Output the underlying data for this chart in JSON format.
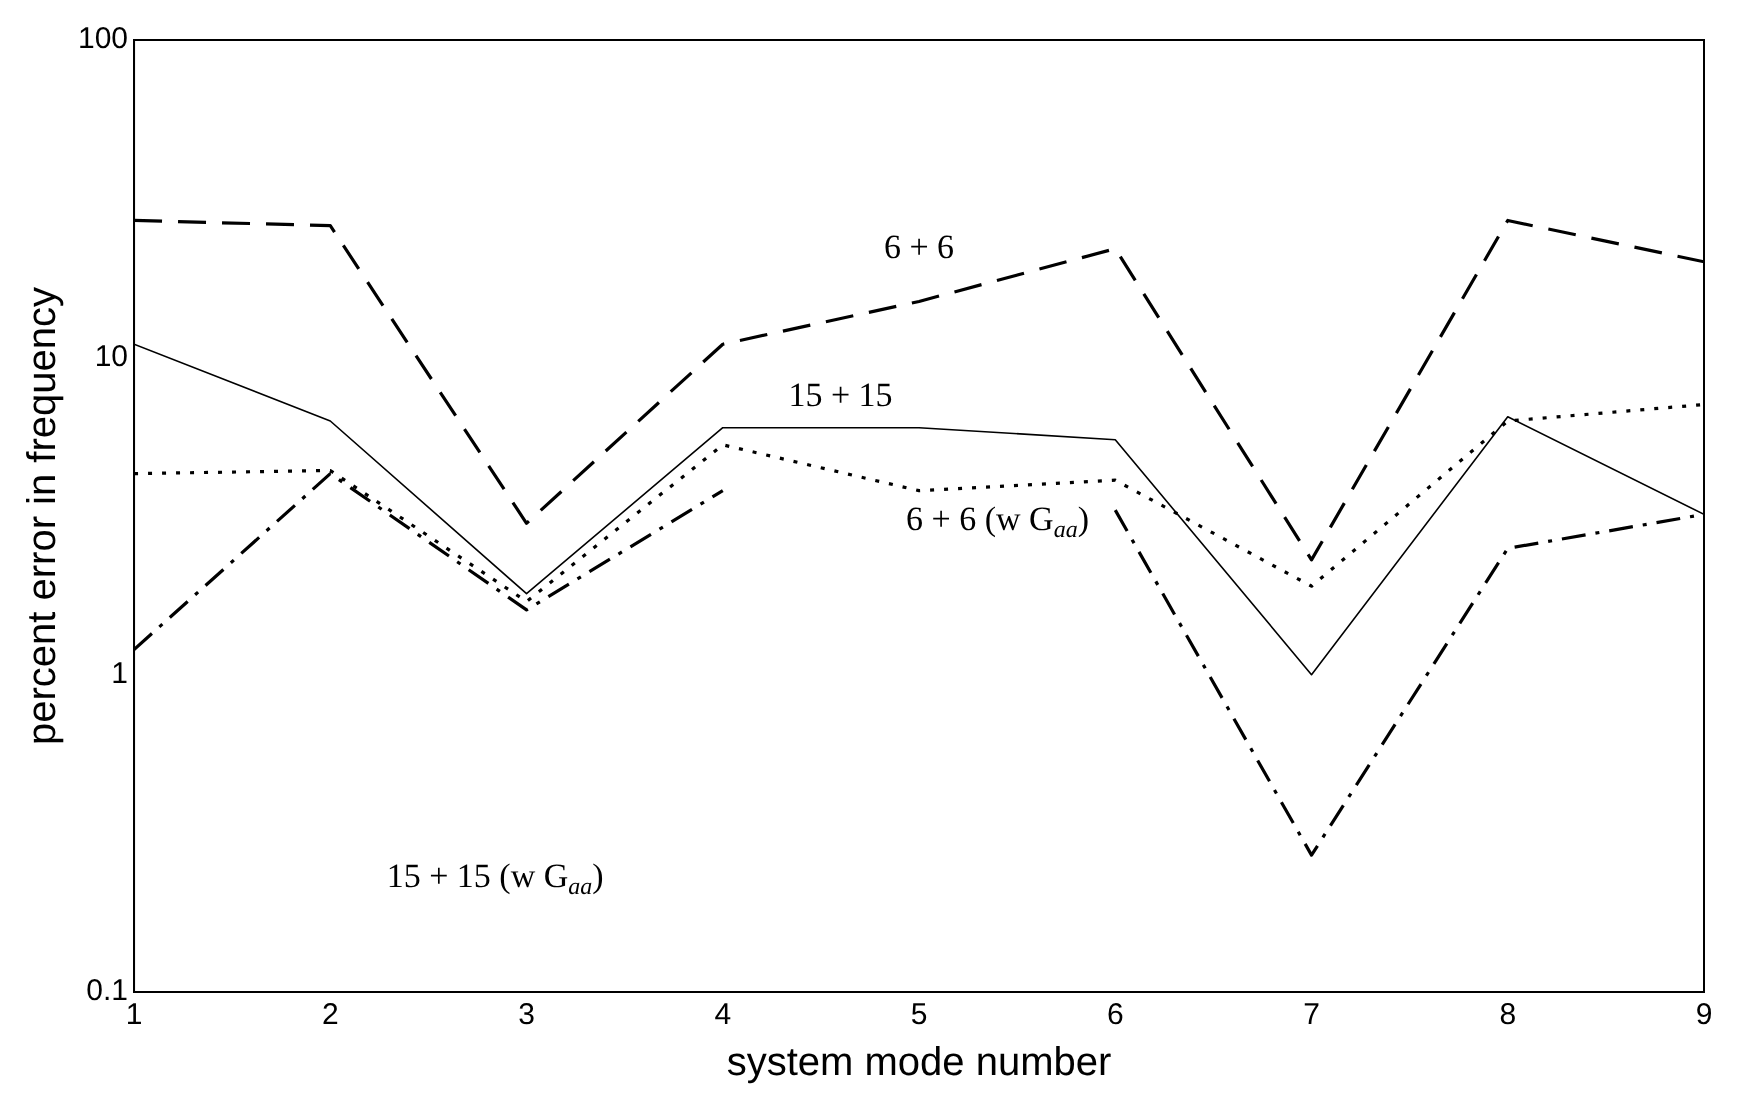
{
  "chart_data": {
    "type": "line",
    "xlabel": "system mode number",
    "ylabel": "percent error in frequency",
    "x": [
      1,
      2,
      3,
      4,
      5,
      6,
      7,
      8,
      9
    ],
    "xlim": [
      1,
      9
    ],
    "xticks": [
      1,
      2,
      3,
      4,
      5,
      6,
      7,
      8,
      9
    ],
    "ylim": [
      0.1,
      100
    ],
    "yticks": [
      0.1,
      1,
      10,
      100
    ],
    "log": "y",
    "grid": false,
    "legend": false,
    "marker": "none",
    "series": [
      {
        "color": "#000000",
        "line_style": "dashed",
        "values": [
          27,
          26,
          3.0,
          11,
          15,
          22,
          2.3,
          27,
          20
        ]
      },
      {
        "color": "#000000",
        "line_style": "solid",
        "values": [
          11,
          6.3,
          1.8,
          6,
          6,
          5.5,
          1.0,
          6.5,
          3.2
        ]
      },
      {
        "color": "#000000",
        "line_style": "dotted",
        "values": [
          4.3,
          4.4,
          1.7,
          5.3,
          3.8,
          4.1,
          1.9,
          6.3,
          7.1
        ]
      },
      {
        "color": "#000000",
        "line_style": "dashdot",
        "values": [
          1.2,
          4.3,
          1.6,
          3.8,
          null,
          3.3,
          0.27,
          2.5,
          3.2
        ]
      }
    ],
    "annotations": [
      "6 + 6",
      "15 + 15",
      "6 + 6 (w G$_{aa}$)",
      "15 + 15 (w G$_{aa}$)"
    ]
  }
}
